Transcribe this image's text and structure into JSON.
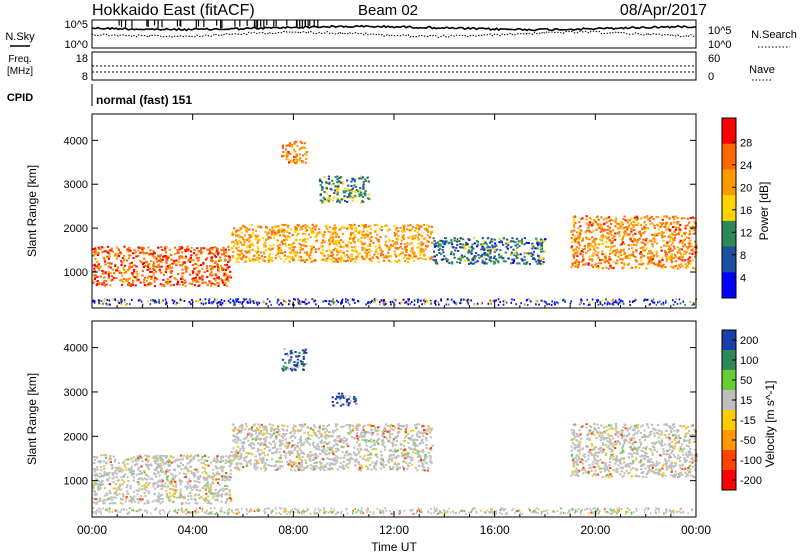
{
  "header": {
    "station": "Hokkaido East (fitACF)",
    "beam": "Beam 02",
    "date": "08/Apr/2017"
  },
  "noise_panel": {
    "left_label": "N.Sky",
    "right_label": "N.Search",
    "left_ticks": [
      "10^5",
      "10^0"
    ],
    "right_ticks": [
      "10^5",
      "10^0"
    ]
  },
  "freq_panel": {
    "label_line1": "Freq.",
    "label_line2": "[MHz]",
    "left_ticks": [
      "18",
      "8"
    ],
    "right_label": "Nave",
    "right_ticks": [
      "60",
      "0"
    ]
  },
  "cpid_panel": {
    "label": "CPID",
    "value": "normal (fast) 151"
  },
  "power_panel": {
    "ylabel": "Slant Range [km]",
    "yticks": [
      "4000",
      "3000",
      "2000",
      "1000"
    ],
    "colorbar_label": "Power [dB]",
    "colorbar_ticks": [
      "28",
      "24",
      "20",
      "16",
      "12",
      "8",
      "4"
    ],
    "colors": [
      "#ff0000",
      "#ff6a00",
      "#ff9900",
      "#ffd400",
      "#2e8b57",
      "#1e50a0",
      "#0000ff"
    ]
  },
  "velocity_panel": {
    "ylabel": "Slant Range [km]",
    "yticks": [
      "4000",
      "3000",
      "2000",
      "1000"
    ],
    "colorbar_label": "Velocity [m s^-1]",
    "colorbar_ticks": [
      "200",
      "100",
      "50",
      "15",
      "-15",
      "-50",
      "-100",
      "-200"
    ],
    "colors": [
      "#1a3fa8",
      "#2e8b57",
      "#66cc33",
      "#bebebe",
      "#ffcc00",
      "#ff9900",
      "#ff4400",
      "#ff0000"
    ]
  },
  "xaxis": {
    "label": "Time UT",
    "ticks": [
      "00:00",
      "04:00",
      "08:00",
      "12:00",
      "16:00",
      "20:00",
      "00:00"
    ]
  },
  "chart_data": [
    {
      "type": "heatmap",
      "title": "Power",
      "xlabel": "Time UT",
      "ylabel": "Slant Range [km]",
      "xlim_hours": [
        0,
        24
      ],
      "ylim": [
        180,
        4600
      ],
      "colorbar": {
        "label": "Power [dB]",
        "range": [
          0,
          30
        ],
        "ticks": [
          4,
          8,
          12,
          16,
          20,
          24,
          28
        ]
      },
      "regions": [
        {
          "t": [
            0,
            5.5
          ],
          "range": [
            700,
            1600
          ],
          "value": 24
        },
        {
          "t": [
            5.5,
            13.5
          ],
          "range": [
            1250,
            2100
          ],
          "value": 20
        },
        {
          "t": [
            13.5,
            18
          ],
          "range": [
            1200,
            1800
          ],
          "value": 10
        },
        {
          "t": [
            19,
            24
          ],
          "range": [
            1100,
            2300
          ],
          "value": 22
        },
        {
          "t": [
            7.5,
            8.5
          ],
          "range": [
            3500,
            4000
          ],
          "value": 22
        },
        {
          "t": [
            9,
            11
          ],
          "range": [
            2600,
            3200
          ],
          "value": 12
        }
      ]
    },
    {
      "type": "heatmap",
      "title": "Velocity",
      "xlabel": "Time UT",
      "ylabel": "Slant Range [km]",
      "xlim_hours": [
        0,
        24
      ],
      "ylim": [
        180,
        4600
      ],
      "colorbar": {
        "label": "Velocity [m s^-1]",
        "range": [
          -250,
          250
        ],
        "ticks": [
          -200,
          -100,
          -50,
          -15,
          15,
          50,
          100,
          200
        ]
      },
      "regions": [
        {
          "t": [
            0,
            5.5
          ],
          "range": [
            500,
            1600
          ],
          "value": 0
        },
        {
          "t": [
            5.5,
            13.5
          ],
          "range": [
            1250,
            2300
          ],
          "value": 0
        },
        {
          "t": [
            19,
            24
          ],
          "range": [
            1100,
            2300
          ],
          "value": 0
        },
        {
          "t": [
            7.5,
            8.5
          ],
          "range": [
            3500,
            4000
          ],
          "value": 150
        },
        {
          "t": [
            9.5,
            10.5
          ],
          "range": [
            2700,
            3000
          ],
          "value": 180
        }
      ]
    }
  ]
}
